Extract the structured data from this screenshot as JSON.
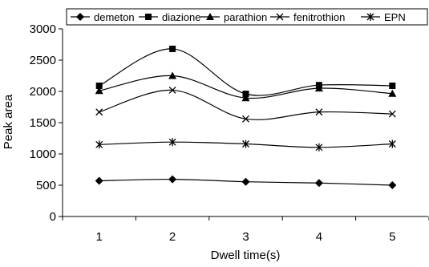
{
  "chart_data": {
    "type": "line",
    "title": "",
    "xlabel": "Dwell time(s)",
    "ylabel": "Peak area",
    "x": [
      1,
      2,
      3,
      4,
      5
    ],
    "xlim": [
      0.5,
      5.5
    ],
    "ylim": [
      0,
      3000
    ],
    "yticks": [
      0,
      500,
      1000,
      1500,
      2000,
      2500,
      3000
    ],
    "grid": false,
    "legend": "top",
    "smooth": true,
    "series": [
      {
        "name": "demeton",
        "marker": "diamond",
        "values": [
          570,
          595,
          555,
          535,
          500
        ]
      },
      {
        "name": "diazione",
        "marker": "square",
        "values": [
          2090,
          2680,
          1960,
          2100,
          2090
        ]
      },
      {
        "name": "parathion",
        "marker": "triangle",
        "values": [
          2010,
          2250,
          1895,
          2050,
          1965
        ]
      },
      {
        "name": "fenitrothion",
        "marker": "x",
        "values": [
          1670,
          2020,
          1560,
          1670,
          1640
        ]
      },
      {
        "name": "EPN",
        "marker": "asterisk",
        "values": [
          1150,
          1190,
          1160,
          1105,
          1160
        ]
      }
    ]
  }
}
